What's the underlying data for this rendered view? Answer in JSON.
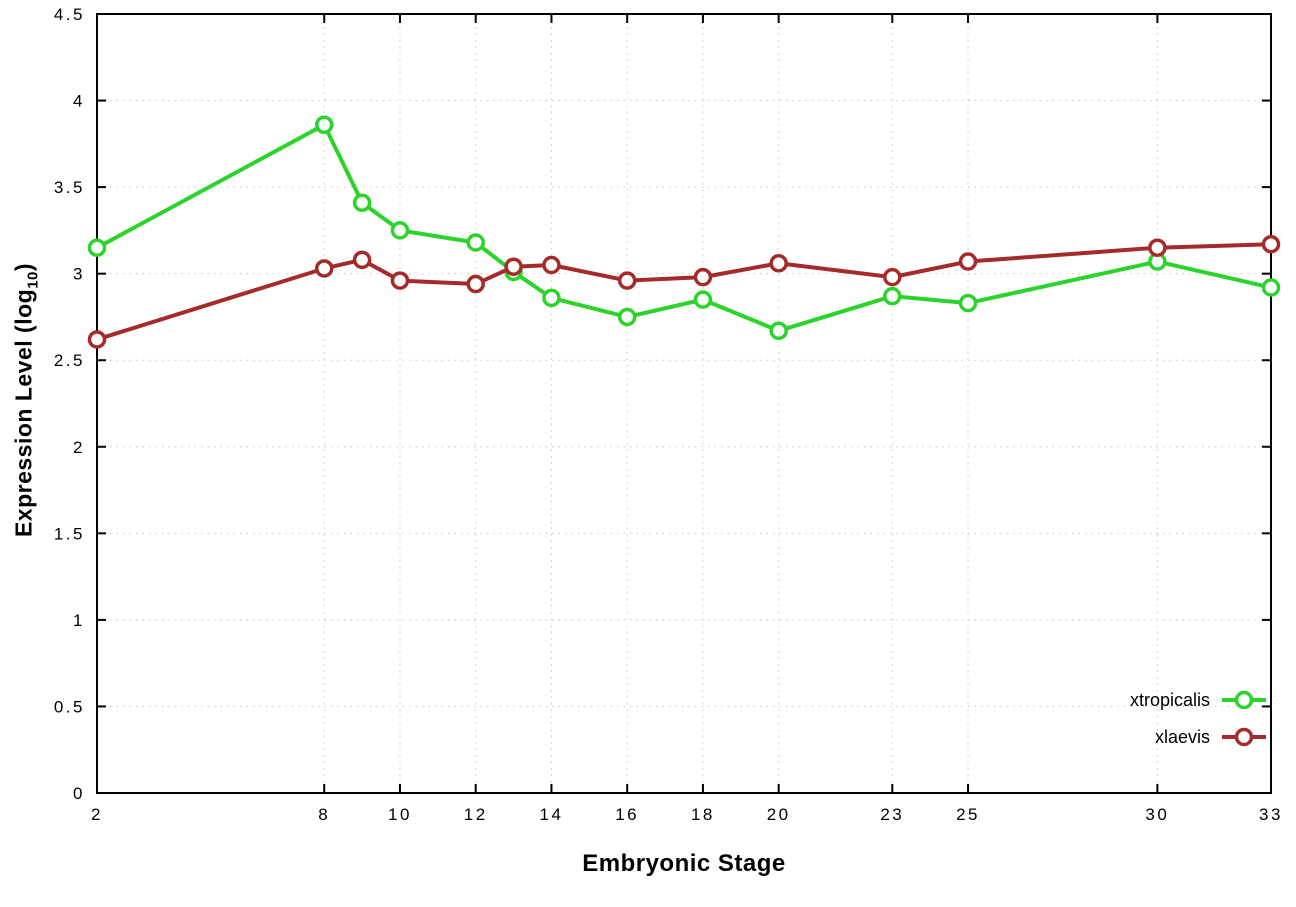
{
  "chart_data": {
    "type": "line",
    "title": "",
    "xlabel": "Embryonic Stage",
    "ylabel_main": "Expression Level (log",
    "ylabel_sub": "10",
    "ylabel_end": ")",
    "xlim": [
      2,
      33
    ],
    "ylim": [
      0,
      4.5
    ],
    "grid": true,
    "legend_position": "bottom-right-inside",
    "x_ticks": {
      "values": [
        2,
        8,
        10,
        12,
        14,
        16,
        18,
        20,
        23,
        25,
        30,
        33
      ],
      "labels": [
        "2",
        "8",
        "10",
        "12",
        "14",
        "16",
        "18",
        "20",
        "23",
        "25",
        "30",
        "33"
      ]
    },
    "y_ticks": {
      "values": [
        0,
        0.5,
        1,
        1.5,
        2,
        2.5,
        3,
        3.5,
        4,
        4.5
      ],
      "labels": [
        "0",
        "0.5",
        "1",
        "1.5",
        "2",
        "2.5",
        "3",
        "3.5",
        "4",
        "4.5"
      ]
    },
    "x": [
      2,
      8,
      9,
      10,
      12,
      13,
      14,
      16,
      18,
      20,
      23,
      25,
      30,
      33
    ],
    "series": [
      {
        "name": "xtropicalis",
        "color": "#2bd42b",
        "values": [
          3.15,
          3.86,
          3.41,
          3.25,
          3.18,
          3.01,
          2.86,
          2.75,
          2.85,
          2.67,
          2.87,
          2.83,
          3.07,
          2.92
        ]
      },
      {
        "name": "xlaevis",
        "color": "#a52a2a",
        "values": [
          2.62,
          3.03,
          3.08,
          2.96,
          2.94,
          3.04,
          3.05,
          2.96,
          2.98,
          3.06,
          2.98,
          3.07,
          3.15,
          3.17
        ]
      }
    ],
    "colors": {
      "axis": "#000000",
      "grid": "#c8c8c8",
      "marker_fill": "#ffffff",
      "text": "#000000"
    }
  }
}
